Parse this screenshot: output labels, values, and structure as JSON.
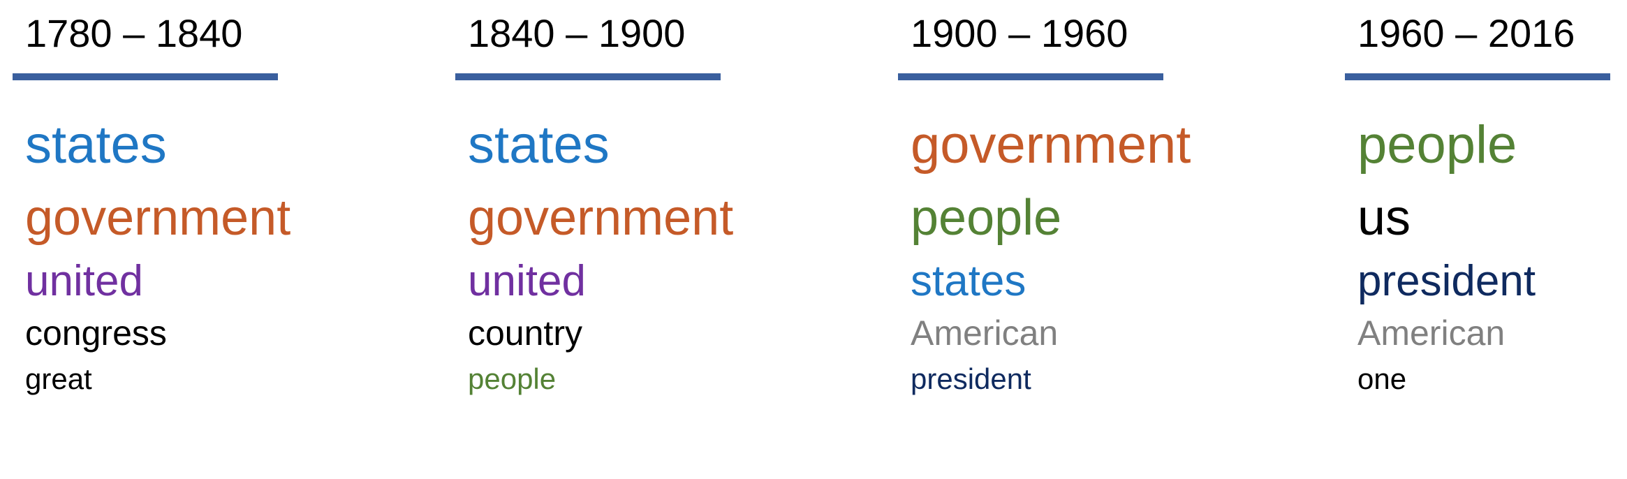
{
  "periods": [
    {
      "label": "1780 – 1840",
      "words": [
        {
          "text": "states",
          "color": "#1f77c4"
        },
        {
          "text": "government",
          "color": "#c55a28"
        },
        {
          "text": "united",
          "color": "#7030a0"
        },
        {
          "text": "congress",
          "color": "#000000"
        },
        {
          "text": "great",
          "color": "#000000"
        }
      ]
    },
    {
      "label": "1840 – 1900",
      "words": [
        {
          "text": "states",
          "color": "#1f77c4"
        },
        {
          "text": "government",
          "color": "#c55a28"
        },
        {
          "text": "united",
          "color": "#7030a0"
        },
        {
          "text": "country",
          "color": "#000000"
        },
        {
          "text": "people",
          "color": "#548235"
        }
      ]
    },
    {
      "label": "1900 – 1960",
      "words": [
        {
          "text": "government",
          "color": "#c55a28"
        },
        {
          "text": "people",
          "color": "#548235"
        },
        {
          "text": "states",
          "color": "#1f77c4"
        },
        {
          "text": "American",
          "color": "#808080"
        },
        {
          "text": "president",
          "color": "#0f2a5f"
        }
      ]
    },
    {
      "label": "1960 – 2016",
      "words": [
        {
          "text": "people",
          "color": "#548235"
        },
        {
          "text": "us",
          "color": "#000000"
        },
        {
          "text": "president",
          "color": "#0f2a5f"
        },
        {
          "text": "American",
          "color": "#808080"
        },
        {
          "text": "one",
          "color": "#000000"
        }
      ]
    }
  ]
}
